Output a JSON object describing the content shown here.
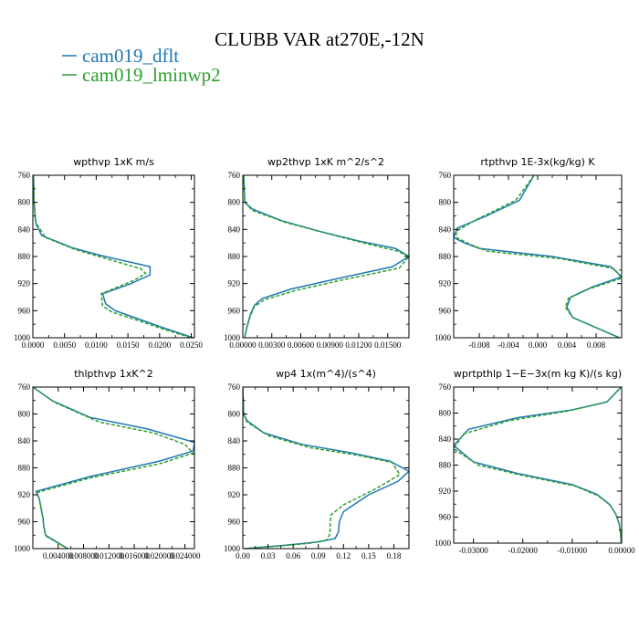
{
  "figure": {
    "title": "CLUBB VAR at270E,-12N",
    "legend": [
      {
        "label": "cam019_dflt",
        "color": "#1f77b4"
      },
      {
        "label": "cam019_lminwp2",
        "color": "#2ca02c"
      }
    ]
  },
  "chart_data": [
    {
      "type": "line",
      "title": "wpthvp  1xK m/s",
      "xlim": [
        0.0,
        0.0255
      ],
      "ylim": [
        760,
        1000
      ],
      "xticks": [
        0.0,
        0.005,
        0.01,
        0.015,
        0.02,
        0.025
      ],
      "xtick_labels": [
        "0.0000",
        "0.0050",
        "0.0100",
        "0.0150",
        "0.0200",
        "0.0250"
      ],
      "yticks": [
        760,
        800,
        840,
        880,
        920,
        960,
        1000
      ],
      "series": [
        {
          "name": "cam019_dflt",
          "color": "#1f77b4",
          "x": [
            0.0001,
            0.0002,
            0.0004,
            0.0005,
            0.0014,
            0.0062,
            0.0105,
            0.0185,
            0.0185,
            0.0155,
            0.011,
            0.0115,
            0.013,
            0.016,
            0.0205,
            0.0253
          ],
          "y": [
            760,
            800,
            825,
            832,
            849,
            867,
            878,
            895,
            907,
            920,
            935,
            950,
            960,
            970,
            985,
            1000
          ]
        },
        {
          "name": "cam019_lminwp2",
          "color": "#2ca02c",
          "dash": true,
          "x": [
            0.0001,
            0.0002,
            0.0004,
            0.0006,
            0.002,
            0.0068,
            0.0112,
            0.017,
            0.0178,
            0.016,
            0.0108,
            0.011,
            0.0125,
            0.0158,
            0.0205,
            0.025
          ],
          "y": [
            760,
            800,
            825,
            832,
            852,
            870,
            882,
            898,
            905,
            915,
            935,
            953,
            962,
            972,
            987,
            1000
          ]
        }
      ]
    },
    {
      "type": "line",
      "title": "wp2thvp  1xK m^2/s^2",
      "xlim": [
        0.0,
        0.0172
      ],
      "ylim": [
        760,
        1000
      ],
      "xticks": [
        0.0,
        0.003,
        0.006,
        0.009,
        0.012,
        0.015
      ],
      "xtick_labels": [
        "0.00000",
        "0.00300",
        "0.00600",
        "0.00900",
        "0.01200",
        "0.01500"
      ],
      "yticks": [
        760,
        800,
        840,
        880,
        920,
        960,
        1000
      ],
      "series": [
        {
          "name": "cam019_dflt",
          "color": "#1f77b4",
          "x": [
            0.0001,
            0.0002,
            0.001,
            0.004,
            0.008,
            0.012,
            0.0158,
            0.0172,
            0.0155,
            0.01,
            0.005,
            0.002,
            0.0012,
            0.0008,
            0.0004,
            0.0002
          ],
          "y": [
            760,
            800,
            810,
            827,
            843,
            857,
            868,
            880,
            895,
            912,
            928,
            942,
            952,
            965,
            985,
            1000
          ]
        },
        {
          "name": "cam019_lminwp2",
          "color": "#2ca02c",
          "dash": true,
          "x": [
            0.0001,
            0.0002,
            0.001,
            0.0045,
            0.0085,
            0.0125,
            0.016,
            0.0172,
            0.0162,
            0.0105,
            0.0055,
            0.0022,
            0.0012,
            0.0008,
            0.0004,
            0.0002
          ],
          "y": [
            760,
            800,
            812,
            830,
            845,
            860,
            872,
            880,
            897,
            914,
            930,
            944,
            954,
            967,
            986,
            1000
          ]
        }
      ]
    },
    {
      "type": "line",
      "title": "rtpthvp  1E-3x(kg/kg) K",
      "xlim": [
        -0.0115,
        0.0115
      ],
      "ylim": [
        760,
        1000
      ],
      "xticks": [
        -0.008,
        -0.004,
        0.0,
        0.004,
        0.008
      ],
      "xtick_labels": [
        "-0.008",
        "-0.004",
        "0.000",
        "0.004",
        "0.008"
      ],
      "yticks": [
        760,
        800,
        840,
        880,
        920,
        960,
        1000
      ],
      "series": [
        {
          "name": "cam019_dflt",
          "color": "#1f77b4",
          "x": [
            -0.0005,
            -0.0025,
            -0.007,
            -0.011,
            -0.0115,
            -0.01,
            -0.008,
            0.002,
            0.01,
            0.0115,
            0.0075,
            0.0045,
            0.004,
            0.0048,
            0.008,
            0.0112
          ],
          "y": [
            760,
            797,
            820,
            838,
            852,
            860,
            868,
            880,
            895,
            910,
            925,
            940,
            955,
            970,
            985,
            1000
          ]
        },
        {
          "name": "cam019_lminwp2",
          "color": "#2ca02c",
          "dash": true,
          "x": [
            -0.0005,
            -0.003,
            -0.0085,
            -0.0112,
            -0.011,
            -0.009,
            -0.007,
            0.003,
            0.0105,
            0.0115,
            0.007,
            0.0042,
            0.0038,
            0.0048,
            0.008,
            0.0112
          ],
          "y": [
            760,
            797,
            826,
            843,
            853,
            863,
            872,
            883,
            898,
            912,
            928,
            942,
            955,
            970,
            985,
            1000
          ]
        }
      ]
    },
    {
      "type": "line",
      "title": "thlpthvp  1xK^2",
      "xlim": [
        0.0,
        0.0255
      ],
      "ylim": [
        760,
        1000
      ],
      "xticks": [
        0.004,
        0.008,
        0.012,
        0.016,
        0.02,
        0.024
      ],
      "xtick_labels": [
        "0.004000",
        "0.008000",
        "0.012000",
        "0.016000",
        "0.020000",
        "0.024000"
      ],
      "yticks": [
        760,
        800,
        840,
        880,
        920,
        960,
        1000
      ],
      "series": [
        {
          "name": "cam019_dflt",
          "color": "#1f77b4",
          "x": [
            0.0,
            0.003,
            0.009,
            0.018,
            0.0255,
            0.0253,
            0.02,
            0.009,
            0.0005,
            0.001,
            0.0012,
            0.0014,
            0.0016,
            0.0017,
            0.002,
            0.0055
          ],
          "y": [
            760,
            780,
            805,
            822,
            842,
            855,
            870,
            893,
            915,
            925,
            935,
            945,
            955,
            965,
            980,
            1000
          ]
        },
        {
          "name": "cam019_lminwp2",
          "color": "#2ca02c",
          "dash": true,
          "x": [
            0.0,
            0.0035,
            0.0105,
            0.019,
            0.024,
            0.0253,
            0.02,
            0.009,
            0.0005,
            0.001,
            0.0012,
            0.0014,
            0.0016,
            0.0017,
            0.002,
            0.0055
          ],
          "y": [
            760,
            783,
            812,
            828,
            845,
            858,
            874,
            895,
            917,
            926,
            936,
            946,
            956,
            966,
            981,
            1000
          ]
        }
      ]
    },
    {
      "type": "line",
      "title": "wp4  1x(m^4)/(s^4)",
      "xlim": [
        0.0,
        0.198
      ],
      "ylim": [
        760,
        1000
      ],
      "xticks": [
        0.0,
        0.03,
        0.06,
        0.09,
        0.12,
        0.15,
        0.18
      ],
      "xtick_labels": [
        "0.00",
        "0.03",
        "0.06",
        "0.09",
        "0.12",
        "0.15",
        "0.18"
      ],
      "yticks": [
        760,
        800,
        840,
        880,
        920,
        960,
        1000
      ],
      "series": [
        {
          "name": "cam019_dflt",
          "color": "#1f77b4",
          "x": [
            0.0,
            0.001,
            0.005,
            0.025,
            0.07,
            0.13,
            0.175,
            0.198,
            0.185,
            0.15,
            0.12,
            0.115,
            0.114,
            0.11,
            0.09,
            0.05,
            0.002
          ],
          "y": [
            760,
            800,
            810,
            828,
            845,
            858,
            870,
            885,
            900,
            920,
            945,
            960,
            975,
            985,
            990,
            995,
            1000
          ]
        },
        {
          "name": "cam019_lminwp2",
          "color": "#2ca02c",
          "dash": true,
          "x": [
            0.0,
            0.001,
            0.005,
            0.03,
            0.08,
            0.14,
            0.178,
            0.187,
            0.16,
            0.12,
            0.105,
            0.104,
            0.104,
            0.1,
            0.08,
            0.045,
            0.002
          ],
          "y": [
            760,
            800,
            812,
            832,
            850,
            862,
            872,
            890,
            910,
            935,
            950,
            965,
            978,
            987,
            992,
            996,
            1000
          ]
        }
      ]
    },
    {
      "type": "line",
      "title": "wprtpthlp  1−E−3x(m kg K)/(s kg)",
      "xlim": [
        -0.034,
        0.0
      ],
      "ylim": [
        760,
        1000
      ],
      "xticks": [
        -0.03,
        -0.02,
        -0.01,
        0.0
      ],
      "xtick_labels": [
        "-0.03000",
        "-0.02000",
        "-0.01000",
        "0.00000"
      ],
      "yticks": [
        760,
        800,
        840,
        880,
        920,
        960,
        1000
      ],
      "series": [
        {
          "name": "cam019_dflt",
          "color": "#1f77b4",
          "x": [
            -0.0001,
            -0.003,
            -0.01,
            -0.021,
            -0.031,
            -0.034,
            -0.03,
            -0.021,
            -0.01,
            -0.005,
            -0.0025,
            -0.0012,
            -0.0005,
            -0.0002,
            -0.0001
          ],
          "y": [
            760,
            783,
            795,
            807,
            825,
            850,
            875,
            893,
            910,
            925,
            940,
            955,
            970,
            985,
            1000
          ]
        },
        {
          "name": "cam019_lminwp2",
          "color": "#2ca02c",
          "dash": true,
          "x": [
            -0.0001,
            -0.003,
            -0.011,
            -0.023,
            -0.032,
            -0.034,
            -0.029,
            -0.02,
            -0.0095,
            -0.0048,
            -0.0024,
            -0.0011,
            -0.0005,
            -0.0002,
            -0.0001
          ],
          "y": [
            760,
            783,
            797,
            812,
            832,
            855,
            880,
            896,
            912,
            927,
            941,
            956,
            971,
            986,
            1000
          ]
        }
      ]
    }
  ]
}
